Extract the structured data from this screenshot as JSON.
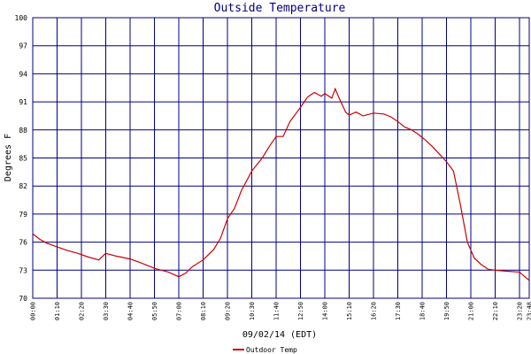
{
  "chart_data": {
    "type": "line",
    "title": "Outside Temperature",
    "xlabel": "09/02/14 (EDT)",
    "ylabel": "Degrees F",
    "ylim": [
      70,
      100
    ],
    "xlim": [
      "00:00",
      "23:48"
    ],
    "grid": true,
    "legend_position": "bottom-left",
    "y_ticks": [
      "70",
      "73",
      "76",
      "79",
      "82",
      "85",
      "88",
      "91",
      "94",
      "97",
      "100"
    ],
    "x_ticks": [
      "00:00",
      "01:10",
      "02:20",
      "03:30",
      "04:40",
      "05:50",
      "07:00",
      "08:10",
      "09:20",
      "10:30",
      "11:40",
      "12:50",
      "14:00",
      "15:10",
      "16:20",
      "17:30",
      "18:40",
      "19:50",
      "21:00",
      "22:10",
      "23:20",
      "23:48"
    ],
    "series": [
      {
        "name": "Outdoor Temp",
        "color": "#cc0000",
        "points": [
          [
            "00:00",
            76.9
          ],
          [
            "00:20",
            76.3
          ],
          [
            "00:40",
            75.9
          ],
          [
            "01:10",
            75.5
          ],
          [
            "01:40",
            75.1
          ],
          [
            "02:10",
            74.8
          ],
          [
            "02:40",
            74.4
          ],
          [
            "03:10",
            74.1
          ],
          [
            "03:30",
            74.8
          ],
          [
            "04:00",
            74.5
          ],
          [
            "04:40",
            74.2
          ],
          [
            "05:10",
            73.8
          ],
          [
            "05:50",
            73.2
          ],
          [
            "06:30",
            72.8
          ],
          [
            "07:00",
            72.3
          ],
          [
            "07:20",
            72.7
          ],
          [
            "07:40",
            73.4
          ],
          [
            "08:10",
            74.1
          ],
          [
            "08:40",
            75.2
          ],
          [
            "09:00",
            76.4
          ],
          [
            "09:20",
            78.5
          ],
          [
            "09:40",
            79.6
          ],
          [
            "10:00",
            81.5
          ],
          [
            "10:30",
            83.6
          ],
          [
            "11:00",
            85.0
          ],
          [
            "11:20",
            86.2
          ],
          [
            "11:40",
            87.3
          ],
          [
            "12:00",
            87.3
          ],
          [
            "12:20",
            88.9
          ],
          [
            "12:50",
            90.4
          ],
          [
            "13:10",
            91.5
          ],
          [
            "13:30",
            92.0
          ],
          [
            "13:50",
            91.6
          ],
          [
            "14:00",
            91.9
          ],
          [
            "14:20",
            91.4
          ],
          [
            "14:30",
            92.4
          ],
          [
            "14:40",
            91.5
          ],
          [
            "15:00",
            89.9
          ],
          [
            "15:10",
            89.6
          ],
          [
            "15:30",
            89.9
          ],
          [
            "15:50",
            89.5
          ],
          [
            "16:20",
            89.8
          ],
          [
            "16:50",
            89.7
          ],
          [
            "17:10",
            89.4
          ],
          [
            "17:30",
            88.9
          ],
          [
            "17:50",
            88.3
          ],
          [
            "18:10",
            88.0
          ],
          [
            "18:30",
            87.5
          ],
          [
            "18:50",
            86.9
          ],
          [
            "19:10",
            86.2
          ],
          [
            "19:30",
            85.4
          ],
          [
            "19:50",
            84.6
          ],
          [
            "20:10",
            83.6
          ],
          [
            "20:30",
            80.0
          ],
          [
            "20:50",
            76.0
          ],
          [
            "21:10",
            74.3
          ],
          [
            "21:30",
            73.6
          ],
          [
            "21:50",
            73.1
          ],
          [
            "22:10",
            73.0
          ],
          [
            "22:40",
            72.9
          ],
          [
            "23:20",
            72.8
          ],
          [
            "23:48",
            71.9
          ]
        ]
      }
    ]
  }
}
